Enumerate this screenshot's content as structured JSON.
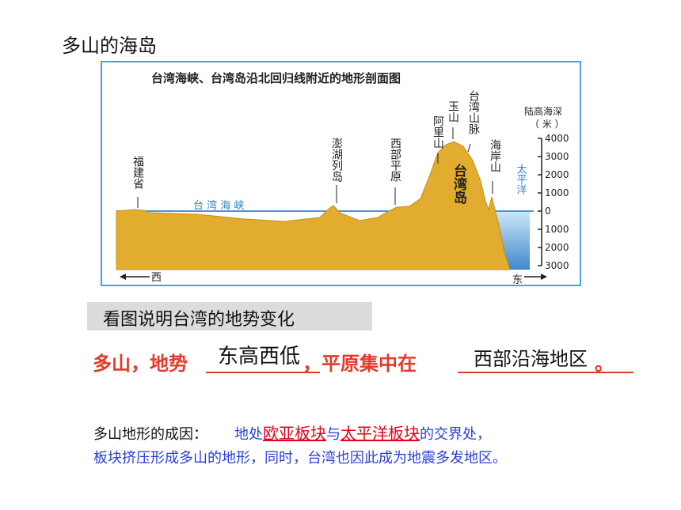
{
  "slide_title": "多山的海岛",
  "figure": {
    "title": "台湾海峡、台湾岛沿北回归线附近的地形剖面图",
    "axis_label": "陆高海深",
    "axis_unit": "（ 米 ）",
    "ticks": [
      "4000",
      "3000",
      "2000",
      "1000",
      "0",
      "1000",
      "2000",
      "3000"
    ],
    "labels": {
      "fujian": "福建省",
      "strait": "台 湾 海 峡",
      "penghu": "澎湖列岛",
      "plain": "西部平原",
      "alishan": "阿里山",
      "yushan": "玉山",
      "range": "台湾山脉",
      "island": "台湾岛",
      "coastal": "海岸山",
      "pacific": "太平洋",
      "west": "西",
      "east": "东"
    },
    "colors": {
      "land": "#e2ac2e",
      "sea": "#4a93d6",
      "accent": "#4aa0d8"
    }
  },
  "question": "看图说明台湾的地势变化",
  "answer": {
    "part1": "多山，地势",
    "blank1": "东高西低",
    "comma": "，",
    "part2": "平原集中在",
    "blank2": "西部沿海地区",
    "end": "。"
  },
  "cause": {
    "label": "多山地形的成因：",
    "prefix": "地处",
    "plate1": "欧亚板块",
    "mid": "与",
    "plate2": "太平洋板块",
    "suffix": "的交界处，",
    "line2": "板块挤压形成多山的地形，同时，台湾也因此成为地震多发地区。"
  }
}
